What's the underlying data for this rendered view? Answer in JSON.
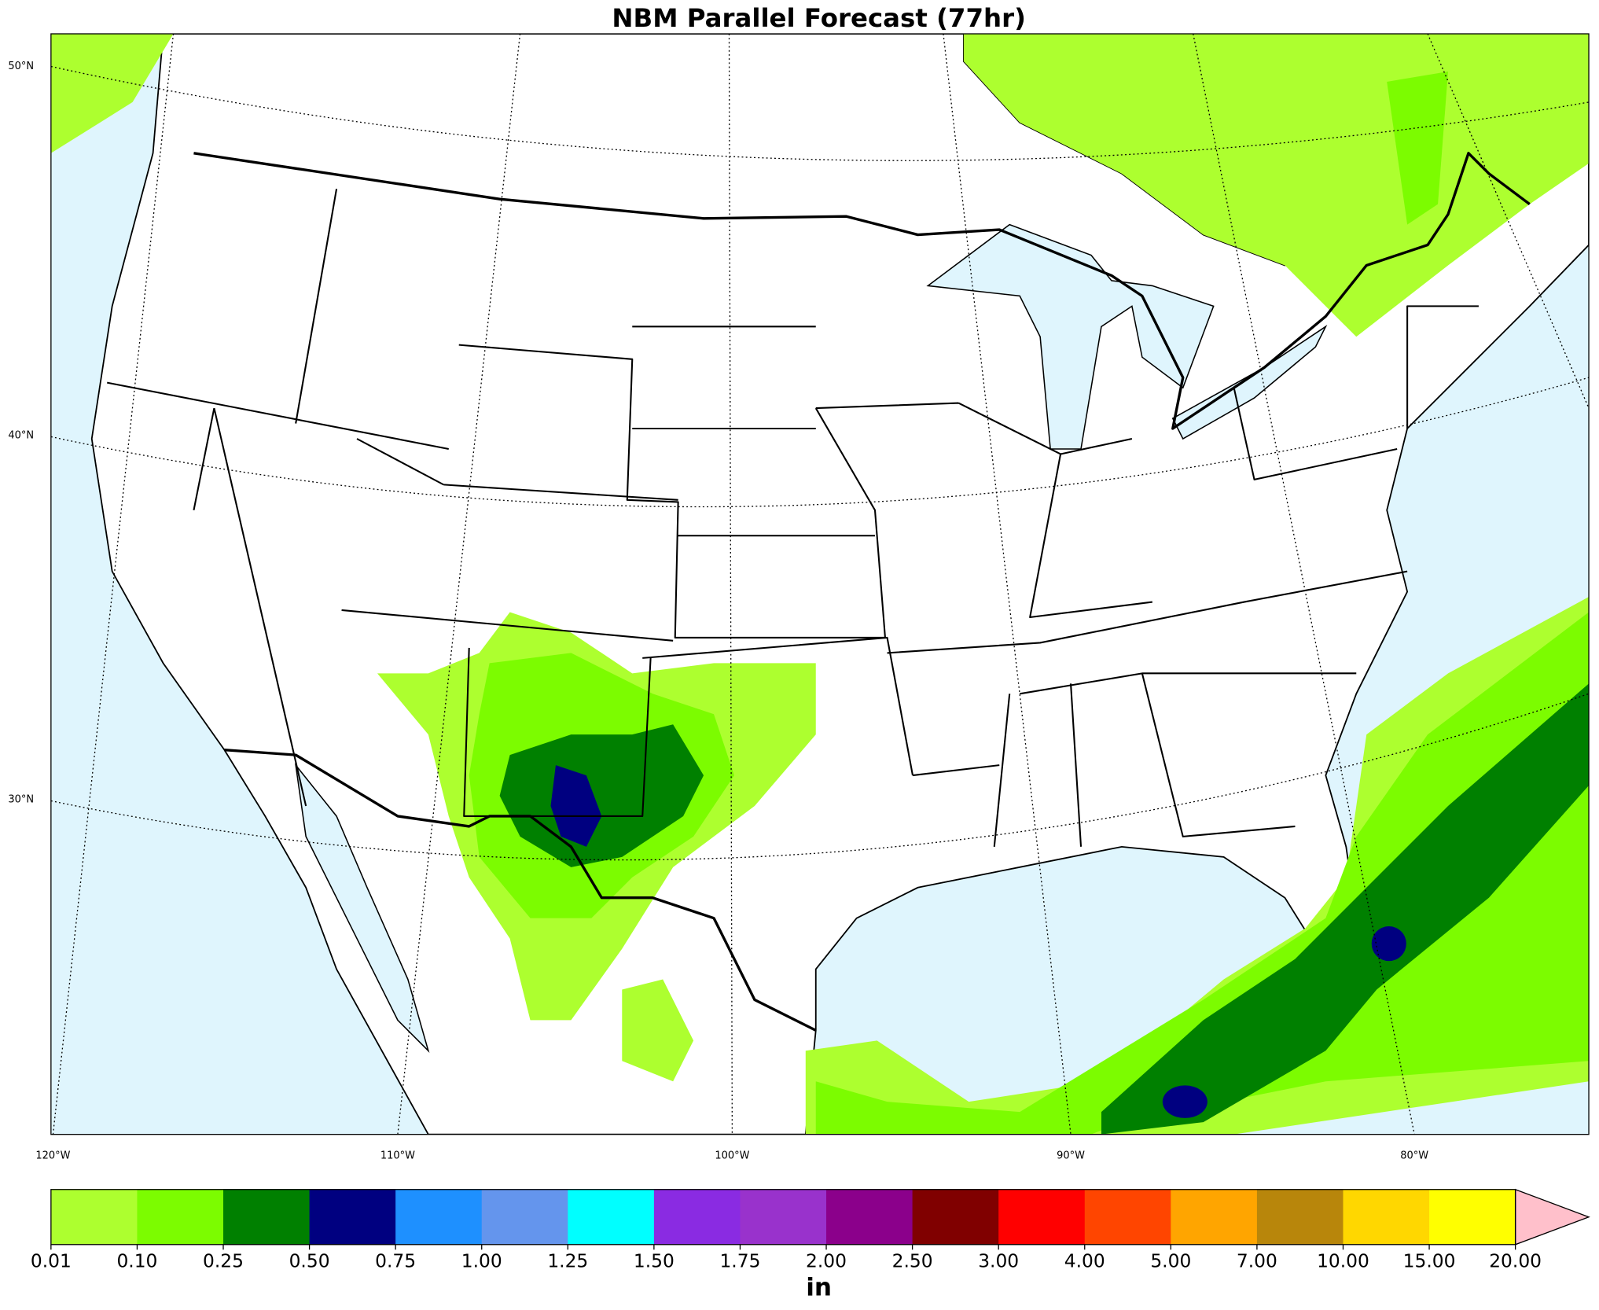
{
  "title": "NBM Parallel Forecast (77hr)",
  "map": {
    "lat_labels": [
      "50°N",
      "40°N",
      "30°N"
    ],
    "lon_labels": [
      "120°W",
      "110°W",
      "100°W",
      "90°W",
      "80°W"
    ]
  },
  "colorbar": {
    "unit": "in",
    "colors": [
      "#adff2f",
      "#7cfc00",
      "#008000",
      "#000080",
      "#1e90ff",
      "#6495ed",
      "#00ffff",
      "#8a2be2",
      "#9932cc",
      "#8b008b",
      "#800000",
      "#ff0000",
      "#ff4500",
      "#ffa500",
      "#b8860b",
      "#ffd700",
      "#ffff00"
    ],
    "extend_color": "#ffc0cb",
    "ticks": [
      {
        "value": 0.01,
        "label": "0.01"
      },
      {
        "value": 0.1,
        "label": "0.10"
      },
      {
        "value": 0.25,
        "label": "0.25"
      },
      {
        "value": 0.5,
        "label": "0.50"
      },
      {
        "value": 0.75,
        "label": "0.75"
      },
      {
        "value": 1,
        "label": "1.00"
      },
      {
        "value": 1.25,
        "label": "1.25"
      },
      {
        "value": 1.5,
        "label": "1.50"
      },
      {
        "value": 1.75,
        "label": "1.75"
      },
      {
        "value": 2,
        "label": "2.00"
      },
      {
        "value": 2.5,
        "label": "2.50"
      },
      {
        "value": 3,
        "label": "3.00"
      },
      {
        "value": 4,
        "label": "4.00"
      },
      {
        "value": 5,
        "label": "5.00"
      },
      {
        "value": 7,
        "label": "7.00"
      },
      {
        "value": 10,
        "label": "10.00"
      },
      {
        "value": 15,
        "label": "15.00"
      },
      {
        "value": 20,
        "label": "20.00"
      }
    ]
  }
}
